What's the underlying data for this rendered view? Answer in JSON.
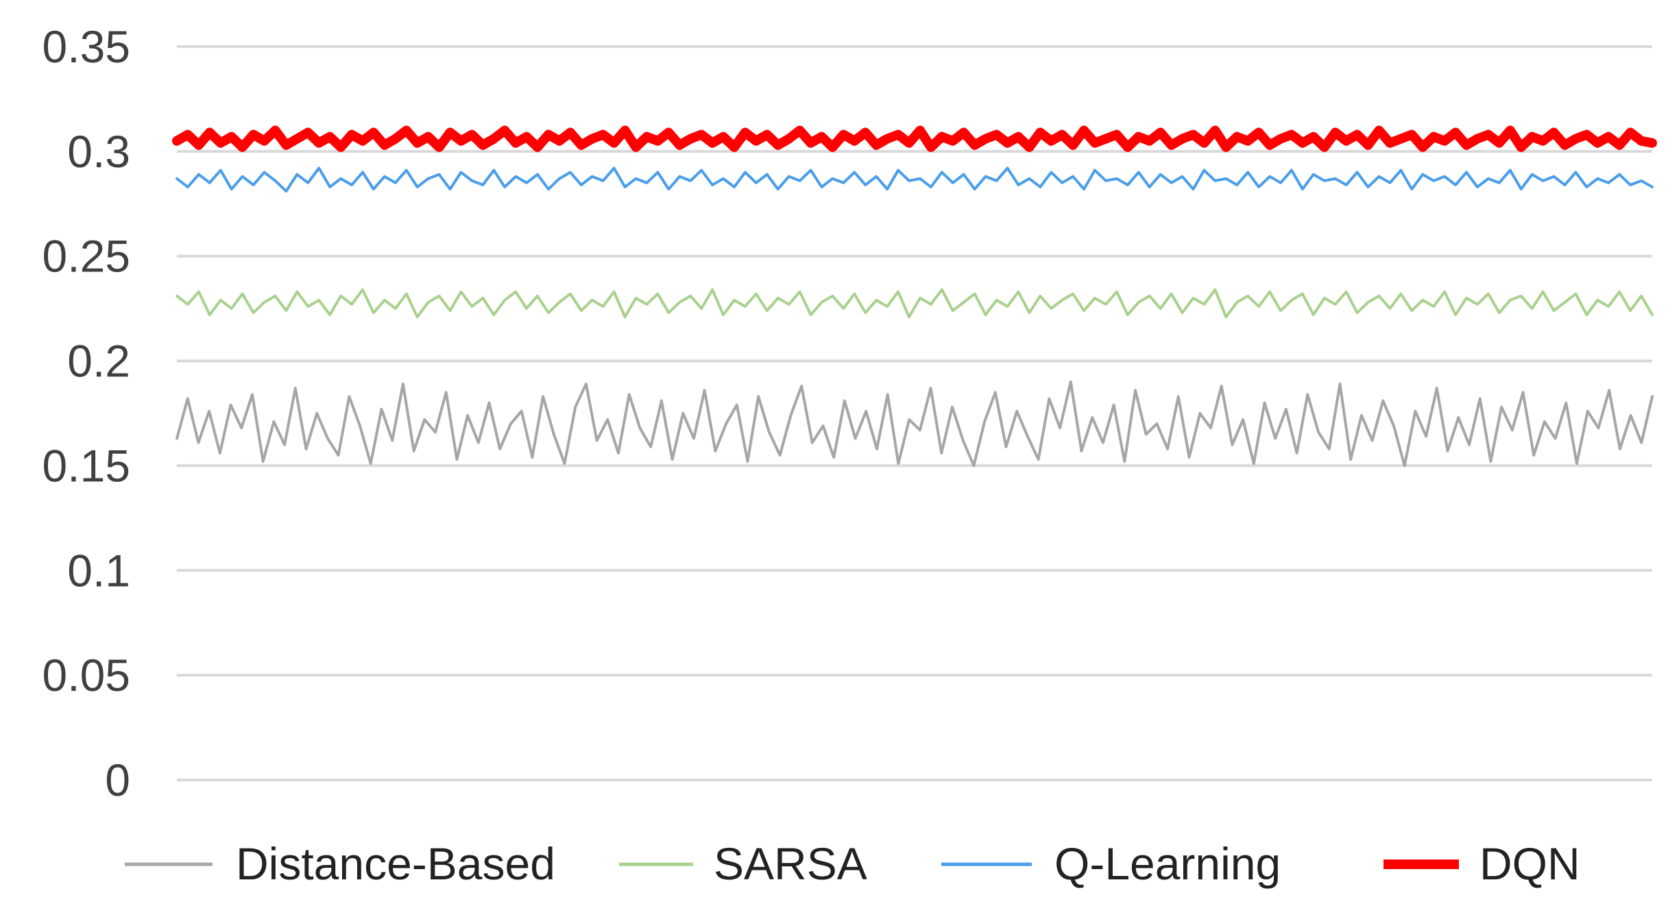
{
  "chart_data": {
    "type": "line",
    "title": "",
    "xlabel": "",
    "ylabel": "",
    "ylim": [
      0,
      0.35
    ],
    "y_ticks": [
      "0.35",
      "0.3",
      "0.25",
      "0.2",
      "0.15",
      "0.1",
      "0.05",
      "0"
    ],
    "y_tick_values": [
      0.35,
      0.3,
      0.25,
      0.2,
      0.15,
      0.1,
      0.05,
      0
    ],
    "grid": true,
    "legend_position": "bottom",
    "series": [
      {
        "name": "Distance-Based",
        "color": "#a6a6a6",
        "values": [
          0.163,
          0.182,
          0.161,
          0.176,
          0.156,
          0.179,
          0.168,
          0.184,
          0.152,
          0.171,
          0.16,
          0.187,
          0.158,
          0.175,
          0.163,
          0.155,
          0.183,
          0.169,
          0.151,
          0.177,
          0.162,
          0.189,
          0.157,
          0.172,
          0.166,
          0.185,
          0.153,
          0.174,
          0.161,
          0.18,
          0.158,
          0.17,
          0.176,
          0.154,
          0.183,
          0.165,
          0.151,
          0.178,
          0.189,
          0.162,
          0.172,
          0.156,
          0.184,
          0.168,
          0.159,
          0.181,
          0.153,
          0.175,
          0.163,
          0.186,
          0.157,
          0.17,
          0.179,
          0.152,
          0.183,
          0.166,
          0.155,
          0.174,
          0.188,
          0.161,
          0.169,
          0.154,
          0.181,
          0.163,
          0.176,
          0.158,
          0.184,
          0.151,
          0.172,
          0.167,
          0.187,
          0.156,
          0.178,
          0.162,
          0.15,
          0.171,
          0.185,
          0.159,
          0.176,
          0.164,
          0.153,
          0.182,
          0.168,
          0.19,
          0.157,
          0.173,
          0.161,
          0.179,
          0.152,
          0.186,
          0.165,
          0.17,
          0.158,
          0.183,
          0.154,
          0.175,
          0.168,
          0.188,
          0.16,
          0.172,
          0.151,
          0.18,
          0.163,
          0.177,
          0.156,
          0.184,
          0.166,
          0.158,
          0.189,
          0.153,
          0.174,
          0.162,
          0.181,
          0.169,
          0.15,
          0.176,
          0.164,
          0.187,
          0.157,
          0.173,
          0.16,
          0.182,
          0.152,
          0.178,
          0.167,
          0.185,
          0.155,
          0.171,
          0.163,
          0.18,
          0.151,
          0.176,
          0.168,
          0.186,
          0.158,
          0.174,
          0.161,
          0.183
        ],
        "stroke": 4
      },
      {
        "name": "SARSA",
        "color": "#a9d18e",
        "values": [
          0.231,
          0.227,
          0.233,
          0.222,
          0.229,
          0.225,
          0.232,
          0.223,
          0.228,
          0.231,
          0.224,
          0.233,
          0.226,
          0.229,
          0.222,
          0.231,
          0.227,
          0.234,
          0.223,
          0.229,
          0.225,
          0.232,
          0.221,
          0.228,
          0.231,
          0.224,
          0.233,
          0.226,
          0.23,
          0.222,
          0.229,
          0.233,
          0.225,
          0.231,
          0.223,
          0.228,
          0.232,
          0.224,
          0.229,
          0.226,
          0.233,
          0.221,
          0.23,
          0.227,
          0.232,
          0.223,
          0.228,
          0.231,
          0.225,
          0.234,
          0.222,
          0.229,
          0.226,
          0.232,
          0.224,
          0.23,
          0.227,
          0.233,
          0.222,
          0.228,
          0.231,
          0.225,
          0.232,
          0.223,
          0.229,
          0.226,
          0.233,
          0.221,
          0.23,
          0.227,
          0.234,
          0.224,
          0.228,
          0.232,
          0.222,
          0.229,
          0.226,
          0.233,
          0.223,
          0.231,
          0.225,
          0.229,
          0.232,
          0.224,
          0.23,
          0.227,
          0.233,
          0.222,
          0.228,
          0.231,
          0.225,
          0.232,
          0.223,
          0.23,
          0.227,
          0.234,
          0.221,
          0.228,
          0.231,
          0.226,
          0.233,
          0.224,
          0.229,
          0.232,
          0.222,
          0.23,
          0.227,
          0.233,
          0.223,
          0.228,
          0.231,
          0.225,
          0.232,
          0.224,
          0.229,
          0.226,
          0.233,
          0.222,
          0.23,
          0.227,
          0.232,
          0.223,
          0.229,
          0.231,
          0.225,
          0.233,
          0.224,
          0.228,
          0.232,
          0.222,
          0.229,
          0.226,
          0.233,
          0.224,
          0.231,
          0.222
        ],
        "stroke": 4
      },
      {
        "name": "Q-Learning",
        "color": "#4a9eea",
        "values": [
          0.287,
          0.283,
          0.289,
          0.285,
          0.291,
          0.282,
          0.288,
          0.284,
          0.29,
          0.286,
          0.281,
          0.289,
          0.285,
          0.292,
          0.283,
          0.287,
          0.284,
          0.29,
          0.282,
          0.288,
          0.285,
          0.291,
          0.283,
          0.287,
          0.289,
          0.282,
          0.29,
          0.286,
          0.284,
          0.291,
          0.283,
          0.288,
          0.285,
          0.289,
          0.282,
          0.287,
          0.29,
          0.284,
          0.288,
          0.286,
          0.292,
          0.283,
          0.287,
          0.285,
          0.29,
          0.282,
          0.288,
          0.286,
          0.291,
          0.284,
          0.287,
          0.283,
          0.29,
          0.285,
          0.289,
          0.282,
          0.288,
          0.286,
          0.291,
          0.283,
          0.287,
          0.285,
          0.29,
          0.284,
          0.288,
          0.282,
          0.291,
          0.286,
          0.287,
          0.283,
          0.29,
          0.285,
          0.289,
          0.282,
          0.288,
          0.286,
          0.292,
          0.284,
          0.287,
          0.283,
          0.29,
          0.285,
          0.288,
          0.282,
          0.291,
          0.286,
          0.287,
          0.284,
          0.29,
          0.283,
          0.289,
          0.285,
          0.288,
          0.282,
          0.291,
          0.286,
          0.287,
          0.284,
          0.29,
          0.283,
          0.288,
          0.285,
          0.291,
          0.282,
          0.289,
          0.286,
          0.287,
          0.284,
          0.29,
          0.283,
          0.288,
          0.285,
          0.291,
          0.282,
          0.289,
          0.286,
          0.288,
          0.284,
          0.29,
          0.283,
          0.287,
          0.285,
          0.291,
          0.282,
          0.289,
          0.286,
          0.288,
          0.284,
          0.29,
          0.283,
          0.287,
          0.285,
          0.289,
          0.284,
          0.286,
          0.283
        ],
        "stroke": 4
      },
      {
        "name": "DQN",
        "color": "#ff0000",
        "values": [
          0.305,
          0.308,
          0.303,
          0.309,
          0.304,
          0.307,
          0.302,
          0.308,
          0.305,
          0.31,
          0.303,
          0.306,
          0.309,
          0.304,
          0.307,
          0.302,
          0.308,
          0.305,
          0.309,
          0.303,
          0.306,
          0.31,
          0.304,
          0.307,
          0.302,
          0.309,
          0.305,
          0.308,
          0.303,
          0.306,
          0.31,
          0.304,
          0.307,
          0.302,
          0.308,
          0.305,
          0.309,
          0.303,
          0.306,
          0.308,
          0.304,
          0.31,
          0.302,
          0.307,
          0.305,
          0.309,
          0.303,
          0.306,
          0.308,
          0.304,
          0.307,
          0.302,
          0.309,
          0.305,
          0.308,
          0.303,
          0.306,
          0.31,
          0.304,
          0.307,
          0.302,
          0.308,
          0.305,
          0.309,
          0.303,
          0.306,
          0.308,
          0.304,
          0.31,
          0.302,
          0.307,
          0.305,
          0.309,
          0.303,
          0.306,
          0.308,
          0.304,
          0.307,
          0.302,
          0.309,
          0.305,
          0.308,
          0.303,
          0.31,
          0.304,
          0.306,
          0.308,
          0.302,
          0.307,
          0.305,
          0.309,
          0.303,
          0.306,
          0.308,
          0.304,
          0.31,
          0.302,
          0.307,
          0.305,
          0.309,
          0.303,
          0.306,
          0.308,
          0.304,
          0.307,
          0.302,
          0.309,
          0.305,
          0.308,
          0.303,
          0.31,
          0.304,
          0.306,
          0.308,
          0.302,
          0.307,
          0.305,
          0.309,
          0.303,
          0.306,
          0.308,
          0.304,
          0.31,
          0.302,
          0.307,
          0.305,
          0.309,
          0.303,
          0.306,
          0.308,
          0.304,
          0.307,
          0.303,
          0.309,
          0.305,
          0.304
        ],
        "stroke": 14
      }
    ]
  }
}
